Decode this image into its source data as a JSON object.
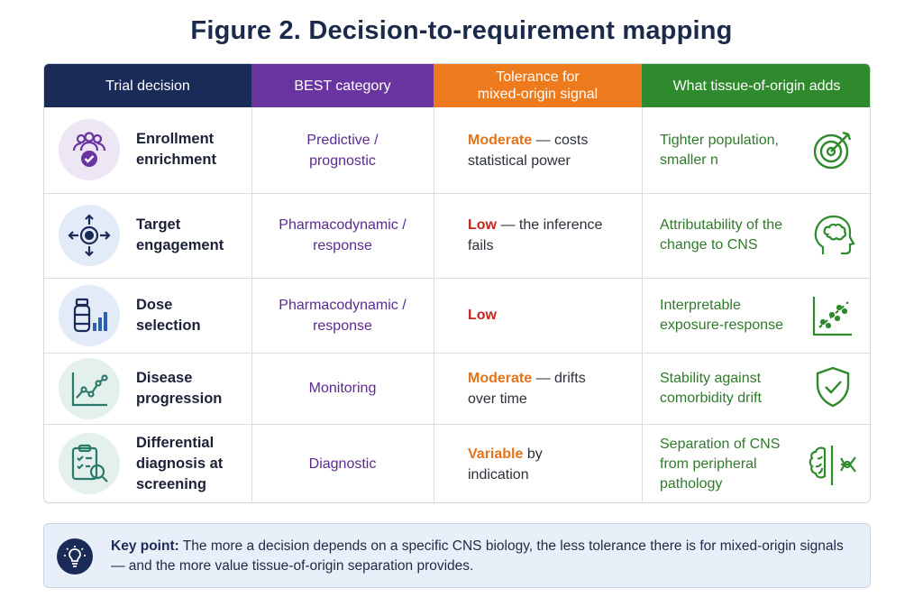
{
  "title": "Figure 2. Decision-to-requirement mapping",
  "headers": {
    "decision": "Trial decision",
    "category": "BEST category",
    "tolerance_line1": "Tolerance for",
    "tolerance_line2": "mixed-origin signal",
    "adds": "What tissue-of-origin adds"
  },
  "rows": [
    {
      "decision_line1": "Enrollment",
      "decision_line2": "enrichment",
      "decision_line3": "",
      "category_line1": "Predictive /",
      "category_line2": "prognostic",
      "tolerance_level": "Moderate",
      "tolerance_rest1": " — costs",
      "tolerance_rest2": "statistical power",
      "adds_line1": "Tighter population,",
      "adds_line2": "smaller n",
      "adds_line3": "",
      "left_icon": "people-check-icon",
      "right_icon": "target-icon"
    },
    {
      "decision_line1": "Target",
      "decision_line2": "engagement",
      "decision_line3": "",
      "category_line1": "Pharmacodynamic /",
      "category_line2": "response",
      "tolerance_level": "Low",
      "tolerance_rest1": " — the inference",
      "tolerance_rest2": "fails",
      "adds_line1": "Attributability of the",
      "adds_line2": "change to CNS",
      "adds_line3": "",
      "left_icon": "crosshair-arrows-icon",
      "right_icon": "head-brain-icon"
    },
    {
      "decision_line1": "Dose",
      "decision_line2": "selection",
      "decision_line3": "",
      "category_line1": "Pharmacodynamic /",
      "category_line2": "response",
      "tolerance_level": "Low",
      "tolerance_rest1": "",
      "tolerance_rest2": "",
      "adds_line1": "Interpretable",
      "adds_line2": "exposure-response",
      "adds_line3": "",
      "left_icon": "vial-bars-icon",
      "right_icon": "scatter-trend-icon"
    },
    {
      "decision_line1": "Disease",
      "decision_line2": "progression",
      "decision_line3": "",
      "category_line1": "Monitoring",
      "category_line2": "",
      "tolerance_level": "Moderate",
      "tolerance_rest1": " — drifts",
      "tolerance_rest2": "over time",
      "adds_line1": "Stability against",
      "adds_line2": "comorbidity drift",
      "adds_line3": "",
      "left_icon": "line-chart-icon",
      "right_icon": "shield-check-icon"
    },
    {
      "decision_line1": "Differential",
      "decision_line2": "diagnosis at",
      "decision_line3": "screening",
      "category_line1": "Diagnostic",
      "category_line2": "",
      "tolerance_level": "Variable",
      "tolerance_rest1": " by",
      "tolerance_rest2": "indication",
      "adds_line1": "Separation of CNS",
      "adds_line2": "from peripheral",
      "adds_line3": "pathology",
      "left_icon": "clipboard-search-icon",
      "right_icon": "brain-neuron-icon"
    }
  ],
  "keypoint": {
    "label": "Key point:",
    "text": " The more a decision depends on a specific CNS biology, the less tolerance there is for mixed-origin signals — and the more value tissue-of-origin separation provides."
  },
  "colors": {
    "header_decision": "#1b2b57",
    "header_category": "#6a34a0",
    "header_tolerance": "#ee7a1e",
    "header_adds": "#2f8a2d",
    "moderate": "#e4741c",
    "low": "#c8241e"
  }
}
